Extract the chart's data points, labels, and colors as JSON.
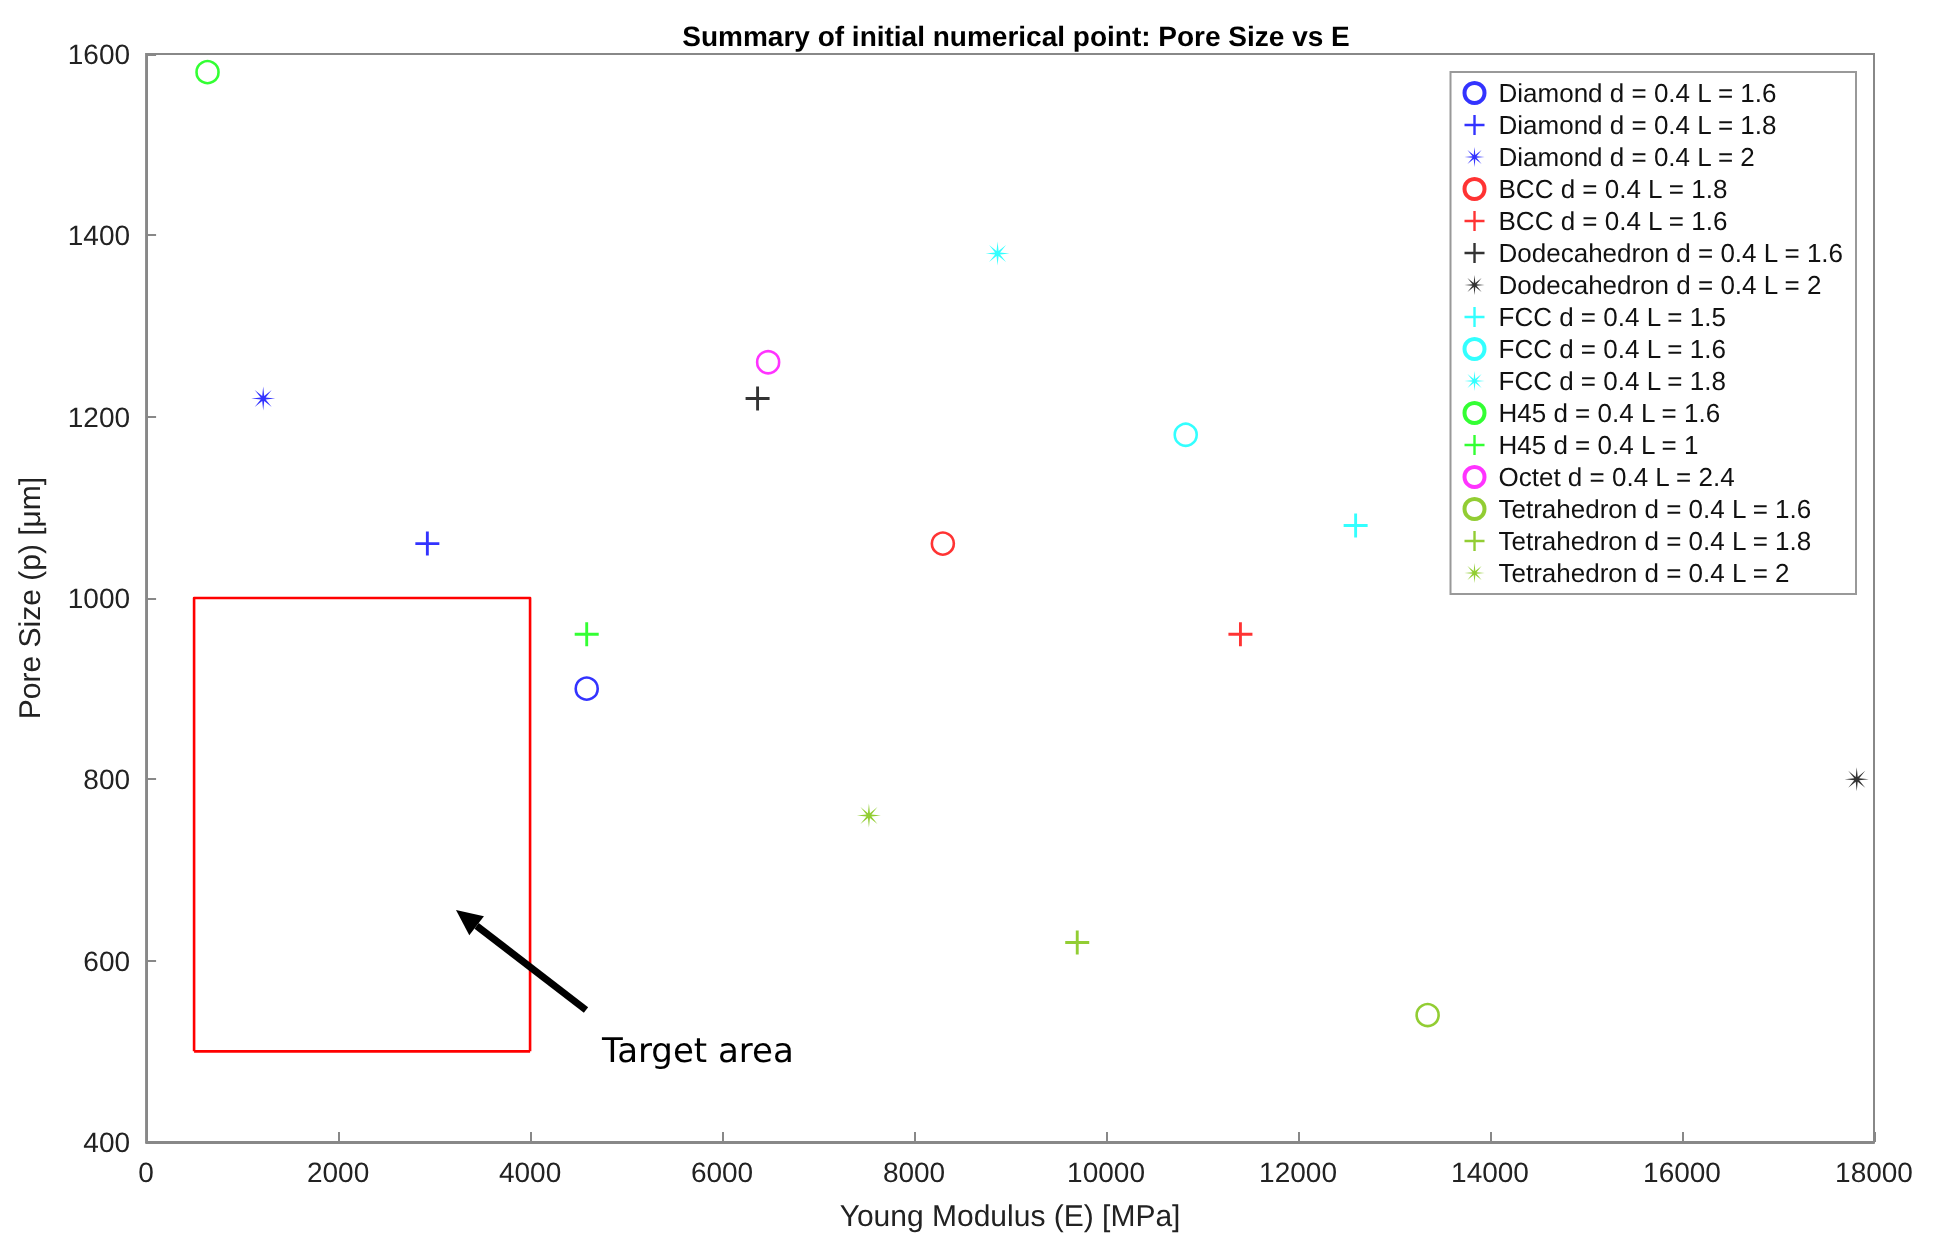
{
  "chart_data": {
    "type": "scatter",
    "title": "Summary of initial numerical point: Pore Size vs E",
    "xlabel": "Young Modulus (E) [MPa]",
    "ylabel": "Pore Size (p) [μm]",
    "xlim": [
      0,
      18000
    ],
    "xticks": [
      0,
      2000,
      4000,
      6000,
      8000,
      10000,
      12000,
      14000,
      16000,
      18000
    ],
    "ylim": [
      400,
      1600
    ],
    "yticks": [
      400,
      600,
      800,
      1000,
      1200,
      1400,
      1600
    ],
    "grid": false,
    "legend": "top right",
    "annotations": [
      "Target area"
    ],
    "series": [
      {
        "type": "line",
        "color": "#ff0000",
        "marker": "none",
        "x": [
          500,
          500,
          4000,
          4000
        ],
        "values": [
          500,
          1000,
          1000,
          500
        ]
      },
      {
        "type": "line",
        "color": "#ff0000",
        "marker": "none",
        "x": [
          500,
          4000
        ],
        "values": [
          500,
          500
        ]
      },
      {
        "name": "Diamond d = 0.4 L = 1.6",
        "color": "#0000ff",
        "marker": "circle",
        "x": [
          4590
        ],
        "values": [
          900
        ]
      },
      {
        "name": "Diamond d = 0.4 L = 1.8",
        "color": "#0000ff",
        "marker": "cross",
        "x": [
          2930
        ],
        "values": [
          1060
        ]
      },
      {
        "name": "Diamond d = 0.4 L = 2",
        "color": "#0000ff",
        "marker": "star",
        "x": [
          1220
        ],
        "values": [
          1220
        ]
      },
      {
        "name": "BCC d = 0.4 L = 1.8",
        "color": "#ff0000",
        "marker": "circle",
        "x": [
          8300
        ],
        "values": [
          1060
        ]
      },
      {
        "name": "BCC d = 0.4 L = 1.6",
        "color": "#ff0000",
        "marker": "cross",
        "x": [
          11400
        ],
        "values": [
          960
        ]
      },
      {
        "name": "Dodecahedron d = 0.4 L = 1.6",
        "color": "#000000",
        "marker": "cross",
        "x": [
          6370
        ],
        "values": [
          1220
        ]
      },
      {
        "name": "Dodecahedron d = 0.4 L = 2",
        "color": "#000000",
        "marker": "star",
        "x": [
          17820
        ],
        "values": [
          800
        ]
      },
      {
        "name": "FCC d = 0.4 L = 1.5",
        "color": "#00ffff",
        "marker": "cross",
        "x": [
          12600
        ],
        "values": [
          1080
        ]
      },
      {
        "name": "FCC d = 0.4 L = 1.6",
        "color": "#00ffff",
        "marker": "circle",
        "x": [
          10830
        ],
        "values": [
          1180
        ]
      },
      {
        "name": "FCC d = 0.4 L = 1.8",
        "color": "#00ffff",
        "marker": "star",
        "x": [
          8870
        ],
        "values": [
          1380
        ]
      },
      {
        "name": "H45 d = 0.4 L = 1.6",
        "color": "#00ff00",
        "marker": "circle",
        "x": [
          640
        ],
        "values": [
          1580
        ]
      },
      {
        "name": "H45 d = 0.4 L = 1",
        "color": "#00ff00",
        "marker": "cross",
        "x": [
          4590
        ],
        "values": [
          960
        ]
      },
      {
        "name": "Octet d = 0.4 L = 2.4",
        "color": "#ff00ff",
        "marker": "circle",
        "x": [
          6480
        ],
        "values": [
          1260
        ]
      },
      {
        "name": "Tetrahedron d = 0.4 L = 1.6",
        "color": "#77c000",
        "marker": "circle",
        "x": [
          13350
        ],
        "values": [
          540
        ]
      },
      {
        "name": "Tetrahedron d = 0.4 L = 1.8",
        "color": "#77c000",
        "marker": "cross",
        "x": [
          9700
        ],
        "values": [
          620
        ]
      },
      {
        "name": "Tetrahedron d = 0.4 L = 2",
        "color": "#77c000",
        "marker": "star",
        "x": [
          7530
        ],
        "values": [
          760
        ]
      }
    ]
  }
}
